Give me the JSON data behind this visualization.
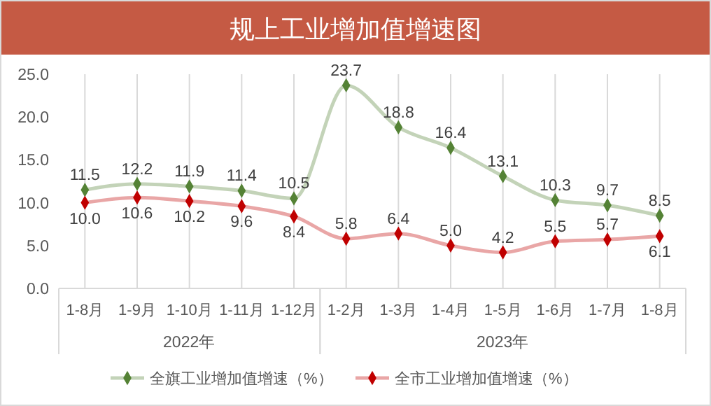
{
  "chart_data": {
    "type": "line",
    "title": "规上工业增加值增速图",
    "categories": [
      "1-8月",
      "1-9月",
      "1-10月",
      "1-11月",
      "1-12月",
      "1-2月",
      "1-3月",
      "1-4月",
      "1-5月",
      "1-6月",
      "1-7月",
      "1-8月"
    ],
    "series": [
      {
        "name": "全旗工业增加值增速（%）",
        "color": "#548235",
        "values": [
          11.5,
          12.2,
          11.9,
          11.4,
          10.5,
          23.7,
          18.8,
          16.4,
          13.1,
          10.3,
          9.7,
          8.5
        ],
        "value_labels": [
          "11.5",
          "12.2",
          "11.9",
          "11.4",
          "10.5",
          "23.7",
          "18.8",
          "16.4",
          "13.1",
          "10.3",
          "9.7",
          "8.5"
        ]
      },
      {
        "name": "全市工业增加值增速（%）",
        "color": "#c00000",
        "values": [
          10.0,
          10.6,
          10.2,
          9.6,
          8.4,
          5.8,
          6.4,
          5.0,
          4.2,
          5.5,
          5.7,
          6.1
        ],
        "value_labels": [
          "10.0",
          "10.6",
          "10.2",
          "9.6",
          "8.4",
          "5.8",
          "6.4",
          "5.0",
          "4.2",
          "5.5",
          "5.7",
          "6.1"
        ]
      }
    ],
    "annotations": [
      "2022年",
      "2023年"
    ],
    "ylim": [
      0,
      25
    ],
    "yticks": [
      {
        "value": 0,
        "label": "0.0"
      },
      {
        "value": 5,
        "label": "5.0"
      },
      {
        "value": 10,
        "label": "10.0"
      },
      {
        "value": 15,
        "label": "15.0"
      },
      {
        "value": 20,
        "label": "20.0"
      },
      {
        "value": 25,
        "label": "25.0"
      }
    ],
    "grid": "x",
    "legend": "bottom",
    "marker": "diamond",
    "line_style": "solid"
  }
}
